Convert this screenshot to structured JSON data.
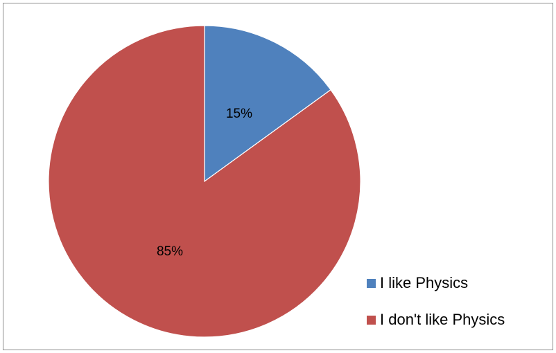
{
  "chart_data": {
    "type": "pie",
    "title": "",
    "categories": [
      "I like Physics",
      "I don't like Physics"
    ],
    "values": [
      15,
      85
    ],
    "data_labels": [
      "15%",
      "85%"
    ],
    "colors": [
      "#4f81bd",
      "#c0504d"
    ],
    "legend_placement": "bottom-right",
    "start_angle": "top, clockwise"
  },
  "legend": {
    "items": [
      {
        "label": "I like Physics",
        "color": "#4f81bd"
      },
      {
        "label": "I don't like Physics",
        "color": "#c0504d"
      }
    ]
  }
}
